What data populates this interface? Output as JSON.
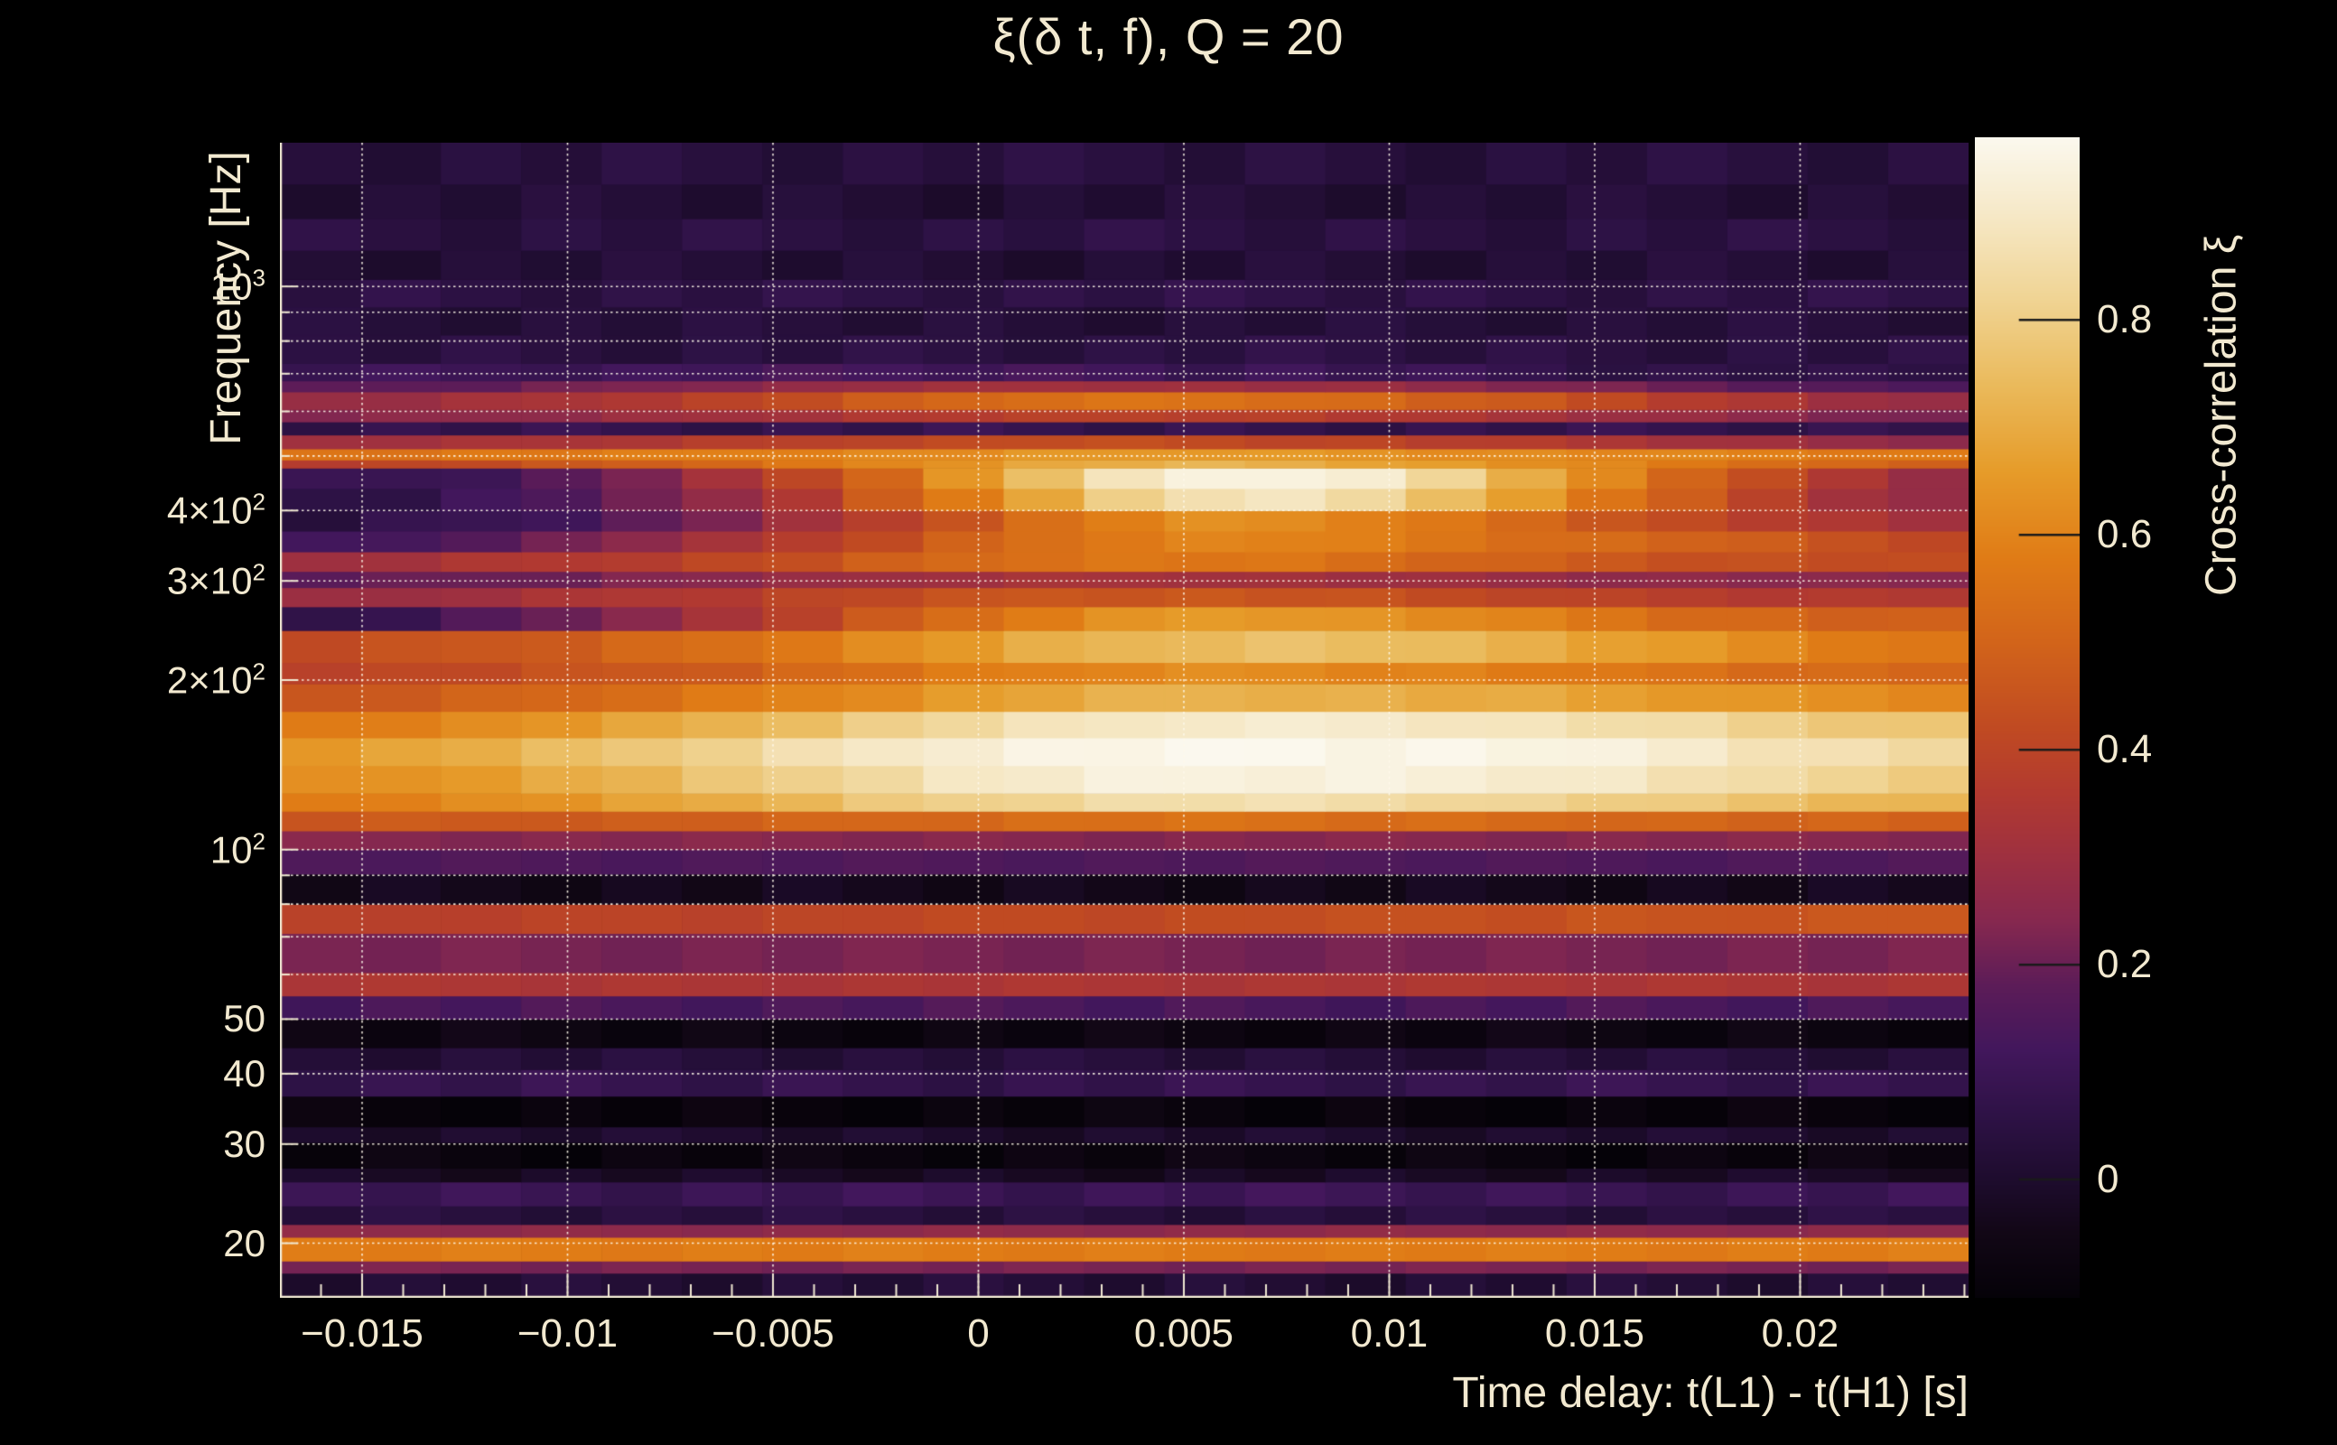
{
  "title": "ξ(δ t, f), Q = 20",
  "colors": {
    "background": "#000000",
    "text": "#f2e9d0",
    "axis_frame": "#f0e8d2",
    "gridline": "rgba(255,250,235,0.9)",
    "colorbar_tick": "#1a1a1a"
  },
  "chart_data": {
    "type": "heatmap",
    "title": "ξ(δ t, f), Q = 20",
    "xlabel": "Time delay: t(L1) - t(H1) [s]",
    "ylabel": "Frequency [Hz]",
    "colorbar_label": "Cross-correlation ξ",
    "x_range": [
      -0.017,
      0.0241
    ],
    "y_range_hz": [
      16,
      1800
    ],
    "y_scale": "log",
    "z_range": [
      -0.11,
      0.97
    ],
    "grid": true,
    "x_ticks": [
      {
        "t": -0.015,
        "label": "−0.015"
      },
      {
        "t": -0.01,
        "label": "−0.01"
      },
      {
        "t": -0.005,
        "label": "−0.005"
      },
      {
        "t": 0,
        "label": "0"
      },
      {
        "t": 0.005,
        "label": "0.005"
      },
      {
        "t": 0.01,
        "label": "0.01"
      },
      {
        "t": 0.015,
        "label": "0.015"
      },
      {
        "t": 0.02,
        "label": "0.02"
      }
    ],
    "x_minor_step": 0.001,
    "y_ticks": [
      {
        "f": 1000,
        "base": "10",
        "exp": "3"
      },
      {
        "f": 400,
        "base": "4×10",
        "exp": "2"
      },
      {
        "f": 300,
        "base": "3×10",
        "exp": "2"
      },
      {
        "f": 200,
        "base": "2×10",
        "exp": "2"
      },
      {
        "f": 100,
        "base": "10",
        "exp": "2"
      },
      {
        "f": 50,
        "base": "50",
        "exp": ""
      },
      {
        "f": 40,
        "base": "40",
        "exp": ""
      },
      {
        "f": 30,
        "base": "30",
        "exp": ""
      },
      {
        "f": 20,
        "base": "20",
        "exp": ""
      }
    ],
    "grid_y_hz": [
      20,
      30,
      40,
      50,
      60,
      70,
      80,
      90,
      100,
      200,
      300,
      400,
      500,
      600,
      700,
      800,
      900,
      1000
    ],
    "colorbar_ticks": [
      {
        "v": 0.8,
        "label": "0.8"
      },
      {
        "v": 0.6,
        "label": "0.6"
      },
      {
        "v": 0.4,
        "label": "0.4"
      },
      {
        "v": 0.2,
        "label": "0.2"
      },
      {
        "v": 0,
        "label": "0"
      }
    ],
    "colormap_stops": [
      {
        "v": -0.11,
        "c": "#050208"
      },
      {
        "v": -0.05,
        "c": "#120716"
      },
      {
        "v": 0.0,
        "c": "#1e0c2e"
      },
      {
        "v": 0.06,
        "c": "#2e1246"
      },
      {
        "v": 0.12,
        "c": "#42175c"
      },
      {
        "v": 0.18,
        "c": "#5c1c58"
      },
      {
        "v": 0.24,
        "c": "#86284f"
      },
      {
        "v": 0.3,
        "c": "#9e3040"
      },
      {
        "v": 0.36,
        "c": "#b23a30"
      },
      {
        "v": 0.42,
        "c": "#c04a22"
      },
      {
        "v": 0.5,
        "c": "#d2641a"
      },
      {
        "v": 0.58,
        "c": "#e07c16"
      },
      {
        "v": 0.66,
        "c": "#e69c2a"
      },
      {
        "v": 0.74,
        "c": "#eaba5c"
      },
      {
        "v": 0.82,
        "c": "#f0d494"
      },
      {
        "v": 0.9,
        "c": "#f6e9c8"
      },
      {
        "v": 0.97,
        "c": "#fbf8ee"
      }
    ],
    "n_time_cols": 21,
    "rows": [
      {
        "f": [
          16,
          17.7
        ],
        "v": [
          0.02
        ]
      },
      {
        "f": [
          17.7,
          18.6
        ],
        "v": [
          0.22
        ]
      },
      {
        "f": [
          18.6,
          20.5
        ],
        "v": [
          0.58
        ]
      },
      {
        "f": [
          20.5,
          21.6
        ],
        "v": [
          0.26
        ]
      },
      {
        "f": [
          21.6,
          23.3
        ],
        "v": [
          0.04
        ]
      },
      {
        "f": [
          23.3,
          25.7
        ],
        "v": [
          0.1
        ]
      },
      {
        "f": [
          25.7,
          27.2
        ],
        "v": [
          -0.02
        ]
      },
      {
        "f": [
          27.2,
          30.2
        ],
        "v": [
          -0.08
        ]
      },
      {
        "f": [
          30.2,
          32.2
        ],
        "v": [
          0.0
        ]
      },
      {
        "f": [
          32.2,
          36.5
        ],
        "v": [
          -0.09
        ]
      },
      {
        "f": [
          36.5,
          40.7
        ],
        "v": [
          0.08
        ]
      },
      {
        "f": [
          40.7,
          44.5
        ],
        "v": [
          0.03
        ]
      },
      {
        "f": [
          44.5,
          50
        ],
        "v": [
          -0.07
        ]
      },
      {
        "f": [
          50,
          55
        ],
        "v": [
          0.14
        ]
      },
      {
        "f": [
          55,
          60.5
        ],
        "v": [
          0.34
        ]
      },
      {
        "f": [
          60.5,
          71
        ],
        "v": [
          0.22
        ]
      },
      {
        "f": [
          71,
          80
        ],
        "v": [
          0.38,
          0.38,
          0.39,
          0.39,
          0.4,
          0.4,
          0.4,
          0.41,
          0.41,
          0.42,
          0.42,
          0.42,
          0.43,
          0.43,
          0.44,
          0.44,
          0.45,
          0.45,
          0.46,
          0.46,
          0.47
        ]
      },
      {
        "f": [
          80,
          90.5
        ],
        "v": [
          -0.04
        ]
      },
      {
        "f": [
          90.5,
          100
        ],
        "v": [
          0.15
        ]
      },
      {
        "f": [
          100,
          108
        ],
        "v": [
          0.24
        ]
      },
      {
        "f": [
          108,
          117
        ],
        "v": [
          0.46,
          0.47,
          0.47,
          0.48,
          0.48,
          0.49,
          0.5,
          0.51,
          0.52,
          0.53,
          0.54,
          0.54,
          0.54,
          0.53,
          0.53,
          0.52,
          0.52,
          0.51,
          0.5,
          0.5,
          0.49
        ]
      },
      {
        "f": [
          117,
          126
        ],
        "v": [
          0.58,
          0.6,
          0.62,
          0.64,
          0.67,
          0.7,
          0.74,
          0.78,
          0.81,
          0.83,
          0.85,
          0.86,
          0.86,
          0.85,
          0.84,
          0.82,
          0.8,
          0.78,
          0.76,
          0.74,
          0.72
        ]
      },
      {
        "f": [
          126,
          141
        ],
        "v": [
          0.62,
          0.64,
          0.67,
          0.7,
          0.73,
          0.77,
          0.81,
          0.85,
          0.89,
          0.91,
          0.93,
          0.94,
          0.94,
          0.94,
          0.93,
          0.92,
          0.9,
          0.87,
          0.84,
          0.82,
          0.8
        ]
      },
      {
        "f": [
          141,
          158
        ],
        "v": [
          0.66,
          0.68,
          0.71,
          0.74,
          0.78,
          0.82,
          0.86,
          0.9,
          0.93,
          0.95,
          0.96,
          0.97,
          0.97,
          0.96,
          0.96,
          0.95,
          0.93,
          0.91,
          0.88,
          0.86,
          0.84
        ]
      },
      {
        "f": [
          158,
          176
        ],
        "v": [
          0.58,
          0.6,
          0.62,
          0.65,
          0.68,
          0.72,
          0.76,
          0.8,
          0.84,
          0.87,
          0.89,
          0.91,
          0.91,
          0.91,
          0.9,
          0.88,
          0.86,
          0.84,
          0.81,
          0.79,
          0.77
        ]
      },
      {
        "f": [
          176,
          197
        ],
        "v": [
          0.45,
          0.47,
          0.49,
          0.51,
          0.54,
          0.57,
          0.6,
          0.63,
          0.66,
          0.69,
          0.71,
          0.72,
          0.72,
          0.71,
          0.7,
          0.69,
          0.67,
          0.66,
          0.64,
          0.63,
          0.62
        ]
      },
      {
        "f": [
          197,
          215
        ],
        "v": [
          0.4,
          0.41,
          0.42,
          0.44,
          0.46,
          0.48,
          0.51,
          0.54,
          0.57,
          0.59,
          0.61,
          0.62,
          0.62,
          0.61,
          0.6,
          0.58,
          0.56,
          0.55,
          0.53,
          0.52,
          0.51
        ]
      },
      {
        "f": [
          215,
          245
        ],
        "v": [
          0.42,
          0.44,
          0.46,
          0.48,
          0.51,
          0.54,
          0.58,
          0.62,
          0.66,
          0.7,
          0.73,
          0.75,
          0.76,
          0.75,
          0.73,
          0.71,
          0.68,
          0.65,
          0.62,
          0.59,
          0.56
        ]
      },
      {
        "f": [
          245,
          270
        ],
        "v": [
          0.06,
          0.1,
          0.15,
          0.2,
          0.26,
          0.32,
          0.39,
          0.46,
          0.53,
          0.59,
          0.63,
          0.66,
          0.66,
          0.64,
          0.62,
          0.59,
          0.56,
          0.53,
          0.51,
          0.49,
          0.48
        ]
      },
      {
        "f": [
          270,
          292
        ],
        "v": [
          0.28,
          0.29,
          0.31,
          0.33,
          0.35,
          0.37,
          0.4,
          0.42,
          0.44,
          0.46,
          0.46,
          0.46,
          0.45,
          0.44,
          0.42,
          0.41,
          0.39,
          0.38,
          0.37,
          0.36,
          0.36
        ]
      },
      {
        "f": [
          292,
          312
        ],
        "v": [
          0.18,
          0.19,
          0.2,
          0.21,
          0.23,
          0.25,
          0.27,
          0.29,
          0.31,
          0.32,
          0.32,
          0.32,
          0.31,
          0.3,
          0.29,
          0.28,
          0.27,
          0.26,
          0.25,
          0.24,
          0.24
        ]
      },
      {
        "f": [
          312,
          338
        ],
        "v": [
          0.3,
          0.32,
          0.34,
          0.36,
          0.38,
          0.41,
          0.44,
          0.48,
          0.52,
          0.55,
          0.56,
          0.56,
          0.55,
          0.53,
          0.51,
          0.49,
          0.47,
          0.45,
          0.44,
          0.43,
          0.42
        ]
      },
      {
        "f": [
          338,
          368
        ],
        "v": [
          0.1,
          0.13,
          0.17,
          0.21,
          0.26,
          0.31,
          0.37,
          0.43,
          0.49,
          0.54,
          0.58,
          0.6,
          0.6,
          0.58,
          0.56,
          0.54,
          0.52,
          0.5,
          0.47,
          0.44,
          0.42
        ]
      },
      {
        "f": [
          368,
          400
        ],
        "v": [
          0.05,
          0.07,
          0.1,
          0.14,
          0.18,
          0.23,
          0.3,
          0.38,
          0.46,
          0.53,
          0.59,
          0.62,
          0.62,
          0.6,
          0.56,
          0.52,
          0.47,
          0.42,
          0.38,
          0.34,
          0.31
        ]
      },
      {
        "f": [
          400,
          438
        ],
        "v": [
          0.06,
          0.08,
          0.11,
          0.15,
          0.2,
          0.27,
          0.36,
          0.47,
          0.58,
          0.7,
          0.8,
          0.87,
          0.88,
          0.84,
          0.76,
          0.66,
          0.56,
          0.47,
          0.39,
          0.32,
          0.27
        ]
      },
      {
        "f": [
          438,
          476
        ],
        "v": [
          0.08,
          0.1,
          0.13,
          0.17,
          0.23,
          0.31,
          0.41,
          0.52,
          0.64,
          0.76,
          0.87,
          0.94,
          0.95,
          0.91,
          0.83,
          0.72,
          0.61,
          0.51,
          0.42,
          0.35,
          0.29
        ]
      },
      {
        "f": [
          476,
          492
        ],
        "v": [
          0.38,
          0.4,
          0.42,
          0.45,
          0.48,
          0.52,
          0.56,
          0.61,
          0.65,
          0.69,
          0.71,
          0.72,
          0.71,
          0.69,
          0.66,
          0.63,
          0.6,
          0.57,
          0.54,
          0.51,
          0.49
        ]
      },
      {
        "f": [
          492,
          515
        ],
        "v": [
          0.56,
          0.56,
          0.57,
          0.57,
          0.58,
          0.59,
          0.6,
          0.61,
          0.62,
          0.64,
          0.65,
          0.66,
          0.65,
          0.64,
          0.63,
          0.62,
          0.61,
          0.6,
          0.59,
          0.58,
          0.57
        ]
      },
      {
        "f": [
          515,
          545
        ],
        "v": [
          0.3,
          0.31,
          0.32,
          0.33,
          0.35,
          0.37,
          0.39,
          0.41,
          0.42,
          0.43,
          0.43,
          0.42,
          0.41,
          0.4,
          0.38,
          0.36,
          0.34,
          0.32,
          0.3,
          0.28,
          0.27
        ]
      },
      {
        "f": [
          545,
          575
        ],
        "v": [
          0.08
        ]
      },
      {
        "f": [
          575,
          605
        ],
        "v": [
          0.24,
          0.25,
          0.26,
          0.27,
          0.29,
          0.31,
          0.33,
          0.35,
          0.37,
          0.38,
          0.39,
          0.39,
          0.38,
          0.36,
          0.34,
          0.32,
          0.3,
          0.28,
          0.26,
          0.24,
          0.22
        ]
      },
      {
        "f": [
          605,
          650
        ],
        "v": [
          0.28,
          0.29,
          0.31,
          0.33,
          0.36,
          0.39,
          0.43,
          0.47,
          0.51,
          0.54,
          0.55,
          0.55,
          0.54,
          0.52,
          0.49,
          0.46,
          0.42,
          0.38,
          0.34,
          0.3,
          0.27
        ]
      },
      {
        "f": [
          650,
          680
        ],
        "v": [
          0.17,
          0.18,
          0.19,
          0.21,
          0.23,
          0.25,
          0.27,
          0.29,
          0.3,
          0.31,
          0.31,
          0.3,
          0.29,
          0.28,
          0.26,
          0.24,
          0.22,
          0.2,
          0.18,
          0.16,
          0.15
        ]
      },
      {
        "f": [
          680,
          730
        ],
        "v": [
          0.1,
          0.1,
          0.1,
          0.11,
          0.11,
          0.12,
          0.12,
          0.12,
          0.12,
          0.12,
          0.12,
          0.11,
          0.11,
          0.1,
          0.09,
          0.08,
          0.07,
          0.06,
          0.06,
          0.05,
          0.05
        ]
      },
      {
        "f": [
          730,
          820
        ],
        "v": [
          0.05
        ]
      },
      {
        "f": [
          820,
          920
        ],
        "v": [
          0.03
        ]
      },
      {
        "f": [
          920,
          1030
        ],
        "v": [
          0.06
        ]
      },
      {
        "f": [
          1030,
          1160
        ],
        "v": [
          0.02
        ]
      },
      {
        "f": [
          1160,
          1320
        ],
        "v": [
          0.05
        ]
      },
      {
        "f": [
          1320,
          1520
        ],
        "v": [
          0.02
        ]
      },
      {
        "f": [
          1520,
          1800
        ],
        "v": [
          0.04
        ]
      }
    ]
  }
}
